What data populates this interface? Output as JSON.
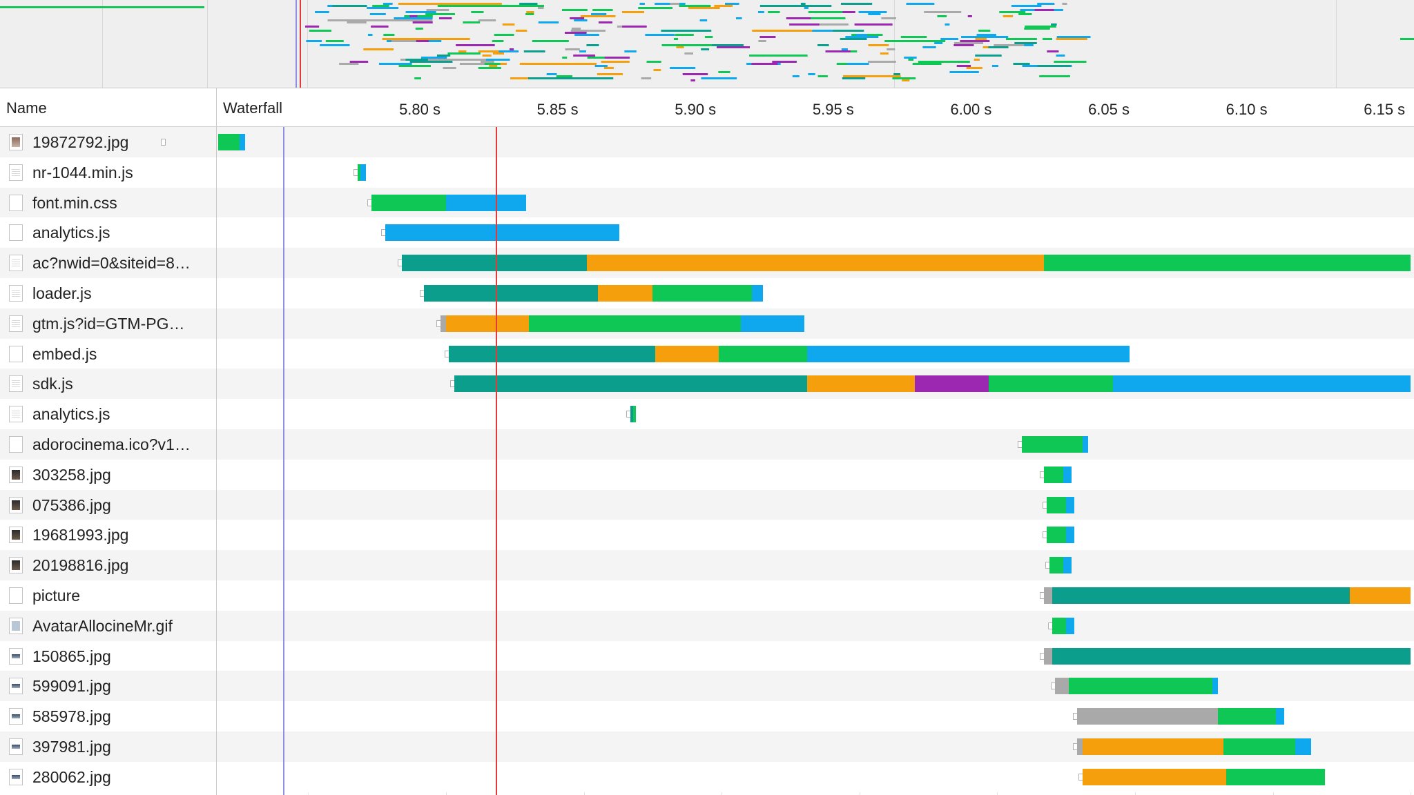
{
  "header": {
    "name_label": "Name",
    "waterfall_label": "Waterfall"
  },
  "timeline": {
    "ticks": [
      "5.80 s",
      "5.85 s",
      "5.90 s",
      "5.95 s",
      "6.00 s",
      "6.05 s",
      "6.10 s",
      "6.15 s"
    ],
    "tick_values_s": [
      5.8,
      5.85,
      5.9,
      5.95,
      6.0,
      6.05,
      6.1,
      6.15
    ],
    "blue_marker_s": 5.723,
    "red_marker_s": 5.818
  },
  "colors": {
    "queue": "#a9a9a9",
    "stalled": "#f59f0c",
    "dns": "#0c9e8c",
    "connect": "#f59f0c",
    "ssl": "#9c27b0",
    "ttfb": "#0fc754",
    "download": "#0fa7ee",
    "grid": "#e1e1e1",
    "row_alt": "#f4f4f4",
    "blue_marker": "#8f8fe6",
    "red_marker": "#e23a3a"
  },
  "requests": [
    {
      "name": "19872792.jpg",
      "icon": "image-thumbnail-icon",
      "segments": [
        {
          "phase": "ttfb",
          "start": 5.698,
          "end": 5.725
        },
        {
          "phase": "download",
          "start": 5.725,
          "end": 5.727
        }
      ]
    },
    {
      "name": "nr-1044.min.js",
      "icon": "script-file-icon",
      "segments": [
        {
          "phase": "ttfb",
          "start": 5.768,
          "end": 5.769
        },
        {
          "phase": "download",
          "start": 5.769,
          "end": 5.771
        }
      ]
    },
    {
      "name": "font.min.css",
      "icon": "blank-file-icon",
      "segments": [
        {
          "phase": "ttfb",
          "start": 5.773,
          "end": 5.8
        },
        {
          "phase": "download",
          "start": 5.8,
          "end": 5.829
        }
      ]
    },
    {
      "name": "analytics.js",
      "icon": "blank-file-icon",
      "segments": [
        {
          "phase": "download",
          "start": 5.778,
          "end": 5.863
        }
      ]
    },
    {
      "name": "ac?nwid=0&siteid=8…",
      "icon": "script-file-icon",
      "segments": [
        {
          "phase": "dns",
          "start": 5.784,
          "end": 5.851
        },
        {
          "phase": "stalled",
          "start": 5.851,
          "end": 6.017
        },
        {
          "phase": "ttfb",
          "start": 6.017,
          "end": 6.15
        }
      ]
    },
    {
      "name": "loader.js",
      "icon": "script-file-icon",
      "segments": [
        {
          "phase": "dns",
          "start": 5.792,
          "end": 5.855
        },
        {
          "phase": "stalled",
          "start": 5.855,
          "end": 5.875
        },
        {
          "phase": "ttfb",
          "start": 5.875,
          "end": 5.911
        },
        {
          "phase": "download",
          "start": 5.911,
          "end": 5.915
        }
      ]
    },
    {
      "name": "gtm.js?id=GTM-PG…",
      "icon": "script-file-icon",
      "segments": [
        {
          "phase": "queue",
          "start": 5.798,
          "end": 5.8
        },
        {
          "phase": "stalled",
          "start": 5.8,
          "end": 5.83
        },
        {
          "phase": "ttfb",
          "start": 5.83,
          "end": 5.907
        },
        {
          "phase": "download",
          "start": 5.907,
          "end": 5.93
        }
      ]
    },
    {
      "name": "embed.js",
      "icon": "blank-file-icon",
      "segments": [
        {
          "phase": "dns",
          "start": 5.801,
          "end": 5.876
        },
        {
          "phase": "stalled",
          "start": 5.876,
          "end": 5.899
        },
        {
          "phase": "ttfb",
          "start": 5.899,
          "end": 5.931
        },
        {
          "phase": "download",
          "start": 5.931,
          "end": 6.048
        }
      ]
    },
    {
      "name": "sdk.js",
      "icon": "script-file-icon",
      "segments": [
        {
          "phase": "dns",
          "start": 5.803,
          "end": 5.931
        },
        {
          "phase": "stalled",
          "start": 5.931,
          "end": 5.97
        },
        {
          "phase": "ssl",
          "start": 5.97,
          "end": 5.997
        },
        {
          "phase": "ttfb",
          "start": 5.997,
          "end": 6.042
        },
        {
          "phase": "download",
          "start": 6.042,
          "end": 6.15
        }
      ]
    },
    {
      "name": "analytics.js",
      "icon": "script-file-icon",
      "segments": [
        {
          "phase": "dns",
          "start": 5.867,
          "end": 5.868
        },
        {
          "phase": "ttfb",
          "start": 5.868,
          "end": 5.869
        }
      ]
    },
    {
      "name": "adorocinema.ico?v1…",
      "icon": "blank-file-icon",
      "segments": [
        {
          "phase": "ttfb",
          "start": 6.009,
          "end": 6.031
        },
        {
          "phase": "download",
          "start": 6.031,
          "end": 6.033
        }
      ]
    },
    {
      "name": "303258.jpg",
      "icon": "portrait-thumbnail-icon",
      "segments": [
        {
          "phase": "ttfb",
          "start": 6.017,
          "end": 6.024
        },
        {
          "phase": "download",
          "start": 6.024,
          "end": 6.027
        }
      ]
    },
    {
      "name": "075386.jpg",
      "icon": "portrait-thumbnail-icon",
      "segments": [
        {
          "phase": "ttfb",
          "start": 6.018,
          "end": 6.025
        },
        {
          "phase": "download",
          "start": 6.025,
          "end": 6.028
        }
      ]
    },
    {
      "name": "19681993.jpg",
      "icon": "portrait-thumbnail-icon",
      "segments": [
        {
          "phase": "ttfb",
          "start": 6.018,
          "end": 6.025
        },
        {
          "phase": "download",
          "start": 6.025,
          "end": 6.028
        }
      ]
    },
    {
      "name": "20198816.jpg",
      "icon": "portrait-thumbnail-icon",
      "segments": [
        {
          "phase": "ttfb",
          "start": 6.019,
          "end": 6.024
        },
        {
          "phase": "download",
          "start": 6.024,
          "end": 6.027
        }
      ]
    },
    {
      "name": "picture",
      "icon": "blank-file-icon",
      "segments": [
        {
          "phase": "queue",
          "start": 6.017,
          "end": 6.02
        },
        {
          "phase": "dns",
          "start": 6.02,
          "end": 6.128
        },
        {
          "phase": "stalled",
          "start": 6.128,
          "end": 6.15
        }
      ]
    },
    {
      "name": "AvatarAllocineMr.gif",
      "icon": "avatar-file-icon",
      "segments": [
        {
          "phase": "ttfb",
          "start": 6.02,
          "end": 6.025
        },
        {
          "phase": "download",
          "start": 6.025,
          "end": 6.028
        }
      ]
    },
    {
      "name": "150865.jpg",
      "icon": "landscape-thumbnail-icon",
      "segments": [
        {
          "phase": "queue",
          "start": 6.017,
          "end": 6.02
        },
        {
          "phase": "dns",
          "start": 6.02,
          "end": 6.15
        }
      ]
    },
    {
      "name": "599091.jpg",
      "icon": "landscape-thumbnail-icon",
      "segments": [
        {
          "phase": "queue",
          "start": 6.021,
          "end": 6.026
        },
        {
          "phase": "ttfb",
          "start": 6.026,
          "end": 6.078
        },
        {
          "phase": "download",
          "start": 6.078,
          "end": 6.08
        }
      ]
    },
    {
      "name": "585978.jpg",
      "icon": "landscape-thumbnail-icon",
      "segments": [
        {
          "phase": "queue",
          "start": 6.029,
          "end": 6.08
        },
        {
          "phase": "ttfb",
          "start": 6.08,
          "end": 6.101
        },
        {
          "phase": "download",
          "start": 6.101,
          "end": 6.104
        }
      ]
    },
    {
      "name": "397981.jpg",
      "icon": "landscape-thumbnail-icon",
      "segments": [
        {
          "phase": "queue",
          "start": 6.029,
          "end": 6.031
        },
        {
          "phase": "stalled",
          "start": 6.031,
          "end": 6.082
        },
        {
          "phase": "ttfb",
          "start": 6.082,
          "end": 6.108
        },
        {
          "phase": "download",
          "start": 6.108,
          "end": 6.114
        }
      ]
    },
    {
      "name": "280062.jpg",
      "icon": "landscape-thumbnail-icon",
      "segments": [
        {
          "phase": "stalled",
          "start": 6.031,
          "end": 6.083
        },
        {
          "phase": "ttfb",
          "start": 6.083,
          "end": 6.119
        }
      ]
    }
  ]
}
